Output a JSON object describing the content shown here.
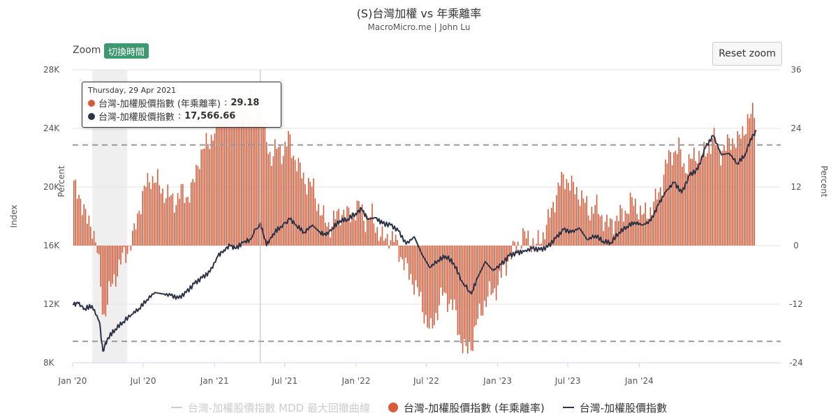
{
  "title": "(S)台灣加權 vs 年乘離率",
  "subtitle": "MacroMicro.me | John Lu",
  "zoom": {
    "label": "Zoom",
    "badge": "切換時間"
  },
  "reset_zoom": "Reset zoom",
  "tooltip": {
    "date": "Thursday, 29 Apr 2021",
    "rows": [
      {
        "name": "台灣-加權股價指數 (年乘離率)",
        "value": "29.18",
        "color": "#d65c3c"
      },
      {
        "name": "台灣-加權股價指數",
        "value": "17,566.66",
        "color": "#2c3347"
      }
    ]
  },
  "legend": [
    {
      "label": "台灣-加權股價指數 MDD 最大回撤曲線",
      "hidden": true
    },
    {
      "label": "台灣-加權股價指數 (年乘離率)",
      "hidden": false
    },
    {
      "label": "台灣-加權股價指數",
      "hidden": false
    }
  ],
  "colors": {
    "bars": "#d65c3c",
    "line": "#2c3347",
    "grid": "#e6e6e6",
    "dashed": "#999999",
    "band": "#efefef"
  },
  "chart_data": {
    "type": "bar+line",
    "x_range": [
      "2020-01-01",
      "2024-12-31"
    ],
    "x_ticks": [
      "Jan '20",
      "Jul '20",
      "Jan '21",
      "Jul '21",
      "Jan '22",
      "Jul '22",
      "Jan '23",
      "Jul '23",
      "Jan '24"
    ],
    "left_axis": {
      "label": "Index",
      "ylim": [
        8000,
        28000
      ],
      "ticks": [
        "8K",
        "12K",
        "16K",
        "20K",
        "24K",
        "28K"
      ]
    },
    "right_axis": {
      "label": "Percent",
      "ylim": [
        -24,
        36
      ],
      "ticks": [
        "-24",
        "-12",
        "0",
        "12",
        "24",
        "36"
      ]
    },
    "left_inner_label": "Percent",
    "reference_lines_percent": [
      20.6,
      -19.6
    ],
    "highlight_band": [
      "2020-02-21",
      "2020-05-21"
    ],
    "crosshair_date": "2021-04-29",
    "series": [
      {
        "name": "台灣-加權股價指數 (年乘離率)",
        "kind": "bar",
        "axis": "right",
        "points": [
          [
            "2020-01-01",
            12
          ],
          [
            "2020-01-20",
            10
          ],
          [
            "2020-02-05",
            5
          ],
          [
            "2020-02-20",
            4
          ],
          [
            "2020-03-05",
            -2
          ],
          [
            "2020-03-19",
            -15
          ],
          [
            "2020-04-05",
            -9
          ],
          [
            "2020-04-20",
            -6
          ],
          [
            "2020-05-05",
            -3
          ],
          [
            "2020-05-20",
            -1
          ],
          [
            "2020-06-05",
            2
          ],
          [
            "2020-06-20",
            8
          ],
          [
            "2020-07-05",
            12
          ],
          [
            "2020-07-20",
            14
          ],
          [
            "2020-08-05",
            13
          ],
          [
            "2020-08-20",
            11
          ],
          [
            "2020-09-05",
            10
          ],
          [
            "2020-09-20",
            9
          ],
          [
            "2020-10-05",
            11
          ],
          [
            "2020-10-20",
            10
          ],
          [
            "2020-11-05",
            12
          ],
          [
            "2020-11-20",
            18
          ],
          [
            "2020-12-05",
            20
          ],
          [
            "2020-12-20",
            22
          ],
          [
            "2021-01-05",
            24
          ],
          [
            "2021-01-20",
            29
          ],
          [
            "2021-02-05",
            27
          ],
          [
            "2021-02-20",
            30
          ],
          [
            "2021-03-05",
            28
          ],
          [
            "2021-03-20",
            29
          ],
          [
            "2021-04-05",
            31
          ],
          [
            "2021-04-29",
            29.18
          ],
          [
            "2021-05-12",
            22
          ],
          [
            "2021-05-25",
            18
          ],
          [
            "2021-06-10",
            20
          ],
          [
            "2021-06-25",
            19
          ],
          [
            "2021-07-10",
            22
          ],
          [
            "2021-07-25",
            18
          ],
          [
            "2021-08-10",
            15
          ],
          [
            "2021-08-25",
            13
          ],
          [
            "2021-09-10",
            12
          ],
          [
            "2021-09-25",
            8
          ],
          [
            "2021-10-10",
            5
          ],
          [
            "2021-10-25",
            4
          ],
          [
            "2021-11-10",
            6
          ],
          [
            "2021-11-25",
            7
          ],
          [
            "2021-12-10",
            6
          ],
          [
            "2021-12-25",
            7
          ],
          [
            "2022-01-10",
            8
          ],
          [
            "2022-01-25",
            5
          ],
          [
            "2022-02-10",
            6
          ],
          [
            "2022-02-25",
            3
          ],
          [
            "2022-03-10",
            1
          ],
          [
            "2022-03-25",
            2
          ],
          [
            "2022-04-10",
            1
          ],
          [
            "2022-04-25",
            -2
          ],
          [
            "2022-05-10",
            -5
          ],
          [
            "2022-05-25",
            -7
          ],
          [
            "2022-06-10",
            -10
          ],
          [
            "2022-06-25",
            -14
          ],
          [
            "2022-07-10",
            -18
          ],
          [
            "2022-07-25",
            -14
          ],
          [
            "2022-08-10",
            -10
          ],
          [
            "2022-08-25",
            -11
          ],
          [
            "2022-09-10",
            -13
          ],
          [
            "2022-09-25",
            -19
          ],
          [
            "2022-10-10",
            -22
          ],
          [
            "2022-10-25",
            -20
          ],
          [
            "2022-11-10",
            -15
          ],
          [
            "2022-11-25",
            -12
          ],
          [
            "2022-12-10",
            -10
          ],
          [
            "2022-12-25",
            -9
          ],
          [
            "2023-01-10",
            -6
          ],
          [
            "2023-01-25",
            -3
          ],
          [
            "2023-02-10",
            -1
          ],
          [
            "2023-02-25",
            1
          ],
          [
            "2023-03-10",
            2
          ],
          [
            "2023-03-25",
            1
          ],
          [
            "2023-04-10",
            0
          ],
          [
            "2023-04-25",
            2
          ],
          [
            "2023-05-10",
            5
          ],
          [
            "2023-05-25",
            9
          ],
          [
            "2023-06-10",
            13
          ],
          [
            "2023-06-25",
            14
          ],
          [
            "2023-07-10",
            12
          ],
          [
            "2023-07-25",
            11
          ],
          [
            "2023-08-10",
            9
          ],
          [
            "2023-08-25",
            7
          ],
          [
            "2023-09-10",
            8
          ],
          [
            "2023-09-25",
            6
          ],
          [
            "2023-10-10",
            4
          ],
          [
            "2023-10-25",
            5
          ],
          [
            "2023-11-10",
            6
          ],
          [
            "2023-11-25",
            7
          ],
          [
            "2023-12-10",
            9
          ],
          [
            "2023-12-25",
            8
          ],
          [
            "2024-01-10",
            6
          ],
          [
            "2024-01-25",
            7
          ],
          [
            "2024-02-10",
            9
          ],
          [
            "2024-02-25",
            12
          ],
          [
            "2024-03-10",
            17
          ],
          [
            "2024-03-25",
            19
          ],
          [
            "2024-04-10",
            20
          ],
          [
            "2024-04-25",
            16
          ],
          [
            "2024-05-10",
            17
          ],
          [
            "2024-05-25",
            19
          ],
          [
            "2024-06-10",
            18
          ],
          [
            "2024-06-25",
            20
          ],
          [
            "2024-07-10",
            22
          ],
          [
            "2024-07-25",
            19
          ],
          [
            "2024-08-10",
            20
          ],
          [
            "2024-08-25",
            22
          ],
          [
            "2024-09-10",
            21
          ],
          [
            "2024-09-25",
            24
          ],
          [
            "2024-10-10",
            26
          ],
          [
            "2024-10-25",
            28
          ]
        ]
      },
      {
        "name": "台灣-加權股價指數",
        "kind": "line",
        "axis": "left",
        "points": [
          [
            "2020-01-01",
            11980
          ],
          [
            "2020-01-15",
            12050
          ],
          [
            "2020-02-01",
            11700
          ],
          [
            "2020-02-20",
            11900
          ],
          [
            "2020-03-10",
            10800
          ],
          [
            "2020-03-19",
            8800
          ],
          [
            "2020-04-01",
            9700
          ],
          [
            "2020-04-20",
            10300
          ],
          [
            "2020-05-10",
            10800
          ],
          [
            "2020-06-01",
            11300
          ],
          [
            "2020-06-20",
            11700
          ],
          [
            "2020-07-10",
            12300
          ],
          [
            "2020-07-31",
            12800
          ],
          [
            "2020-08-20",
            12700
          ],
          [
            "2020-09-10",
            12600
          ],
          [
            "2020-09-30",
            12400
          ],
          [
            "2020-10-20",
            12800
          ],
          [
            "2020-11-10",
            13400
          ],
          [
            "2020-11-30",
            13800
          ],
          [
            "2020-12-20",
            14200
          ],
          [
            "2021-01-10",
            15300
          ],
          [
            "2021-01-25",
            15700
          ],
          [
            "2021-02-10",
            16000
          ],
          [
            "2021-02-25",
            15800
          ],
          [
            "2021-03-15",
            16200
          ],
          [
            "2021-04-01",
            16400
          ],
          [
            "2021-04-29",
            17566.66
          ],
          [
            "2021-05-15",
            16000
          ],
          [
            "2021-06-01",
            16800
          ],
          [
            "2021-06-20",
            17300
          ],
          [
            "2021-07-15",
            17800
          ],
          [
            "2021-07-31",
            17400
          ],
          [
            "2021-08-20",
            16900
          ],
          [
            "2021-09-10",
            17400
          ],
          [
            "2021-09-30",
            16900
          ],
          [
            "2021-10-15",
            16700
          ],
          [
            "2021-11-01",
            17200
          ],
          [
            "2021-11-20",
            17700
          ],
          [
            "2021-12-10",
            17800
          ],
          [
            "2021-12-31",
            18200
          ],
          [
            "2022-01-15",
            18500
          ],
          [
            "2022-01-31",
            17800
          ],
          [
            "2022-02-20",
            17900
          ],
          [
            "2022-03-10",
            17500
          ],
          [
            "2022-03-31",
            17400
          ],
          [
            "2022-04-20",
            17000
          ],
          [
            "2022-05-10",
            16100
          ],
          [
            "2022-05-31",
            16600
          ],
          [
            "2022-06-20",
            15400
          ],
          [
            "2022-07-10",
            14500
          ],
          [
            "2022-07-31",
            15000
          ],
          [
            "2022-08-20",
            15300
          ],
          [
            "2022-09-10",
            14800
          ],
          [
            "2022-09-30",
            13600
          ],
          [
            "2022-10-25",
            12700
          ],
          [
            "2022-11-10",
            13800
          ],
          [
            "2022-11-30",
            14900
          ],
          [
            "2022-12-20",
            14300
          ],
          [
            "2023-01-10",
            14700
          ],
          [
            "2023-01-31",
            15300
          ],
          [
            "2023-02-20",
            15500
          ],
          [
            "2023-03-10",
            15600
          ],
          [
            "2023-03-31",
            15800
          ],
          [
            "2023-04-20",
            15700
          ],
          [
            "2023-05-10",
            15900
          ],
          [
            "2023-05-31",
            16500
          ],
          [
            "2023-06-20",
            17100
          ],
          [
            "2023-07-10",
            16900
          ],
          [
            "2023-07-31",
            17200
          ],
          [
            "2023-08-20",
            16400
          ],
          [
            "2023-09-10",
            16700
          ],
          [
            "2023-09-30",
            16300
          ],
          [
            "2023-10-20",
            16200
          ],
          [
            "2023-11-10",
            16900
          ],
          [
            "2023-11-30",
            17300
          ],
          [
            "2023-12-20",
            17600
          ],
          [
            "2024-01-10",
            17400
          ],
          [
            "2024-01-31",
            17700
          ],
          [
            "2024-02-20",
            18800
          ],
          [
            "2024-03-10",
            19700
          ],
          [
            "2024-03-31",
            20300
          ],
          [
            "2024-04-20",
            19600
          ],
          [
            "2024-05-10",
            20800
          ],
          [
            "2024-05-31",
            21200
          ],
          [
            "2024-06-20",
            22700
          ],
          [
            "2024-07-10",
            23500
          ],
          [
            "2024-07-31",
            22200
          ],
          [
            "2024-08-20",
            22300
          ],
          [
            "2024-09-10",
            21600
          ],
          [
            "2024-09-30",
            22200
          ],
          [
            "2024-10-15",
            23300
          ],
          [
            "2024-10-29",
            23800
          ]
        ]
      }
    ]
  }
}
